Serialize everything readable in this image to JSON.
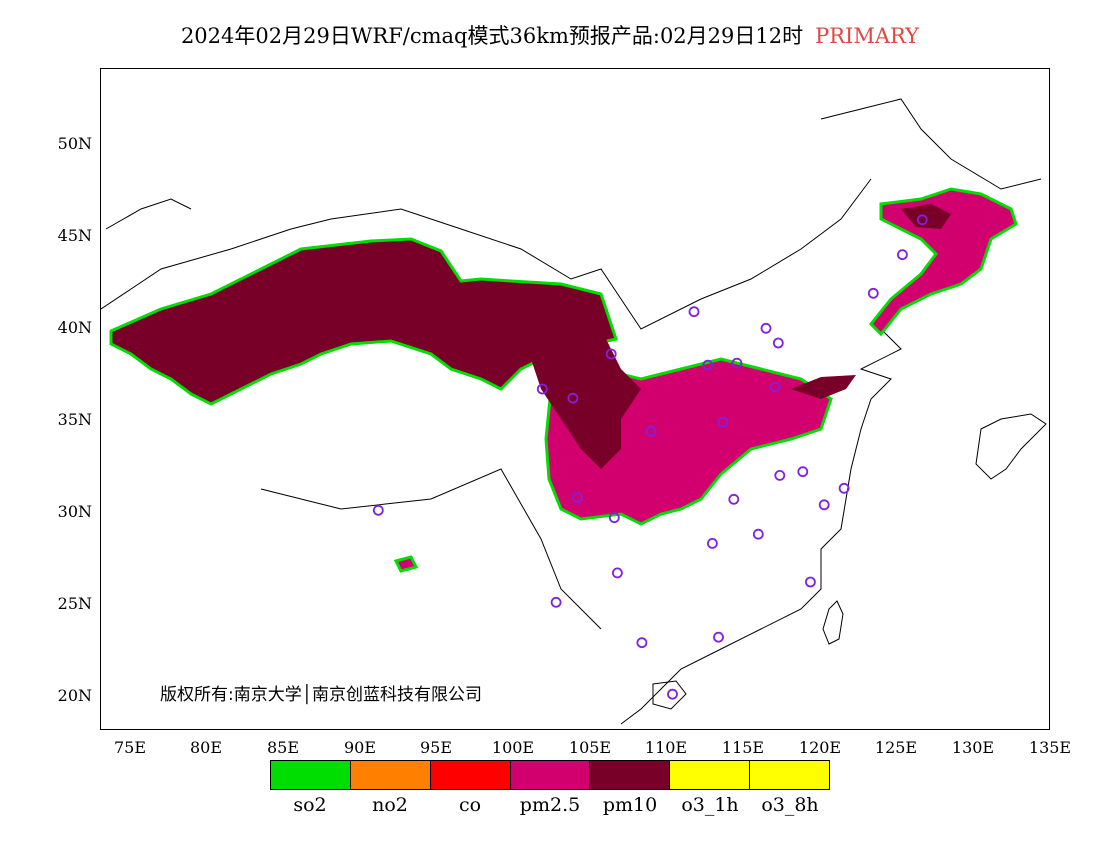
{
  "title": {
    "main": "2024年02月29日WRF/cmaq模式36km预报产品:02月29日12时",
    "tag": "PRIMARY"
  },
  "y_axis": {
    "labels": [
      "50N",
      "45N",
      "40N",
      "35N",
      "30N",
      "25N",
      "20N"
    ]
  },
  "x_axis": {
    "labels": [
      "75E",
      "80E",
      "85E",
      "90E",
      "95E",
      "100E",
      "105E",
      "110E",
      "115E",
      "120E",
      "125E",
      "130E",
      "135E"
    ]
  },
  "copyright": "版权所有:南京大学│南京创蓝科技有限公司",
  "legend": {
    "items": [
      {
        "label": "so2",
        "color": "#00dd00"
      },
      {
        "label": "no2",
        "color": "#ff8000"
      },
      {
        "label": "co",
        "color": "#ff0000"
      },
      {
        "label": "pm2.5",
        "color": "#d2006e"
      },
      {
        "label": "pm10",
        "color": "#780028"
      },
      {
        "label": "o3_1h",
        "color": "#ffff00"
      },
      {
        "label": "o3_8h",
        "color": "#ffff00"
      }
    ]
  },
  "colors": {
    "pm10": "#780028",
    "pm25": "#d2006e",
    "station_marker": "#8020e0",
    "tag": "#e0473f"
  },
  "map": {
    "lon_range": [
      73,
      135
    ],
    "lat_range": [
      18,
      54
    ],
    "stations": [
      [
        91.1,
        30.0
      ],
      [
        101.8,
        36.6
      ],
      [
        103.8,
        36.1
      ],
      [
        106.3,
        38.5
      ],
      [
        111.7,
        40.8
      ],
      [
        112.6,
        37.9
      ],
      [
        113.6,
        34.8
      ],
      [
        114.5,
        38.0
      ],
      [
        116.4,
        39.9
      ],
      [
        117.2,
        39.1
      ],
      [
        117.0,
        36.7
      ],
      [
        108.9,
        34.3
      ],
      [
        104.1,
        30.7
      ],
      [
        106.5,
        29.6
      ],
      [
        106.7,
        26.6
      ],
      [
        102.7,
        25.0
      ],
      [
        108.3,
        22.8
      ],
      [
        110.3,
        20.0
      ],
      [
        113.3,
        23.1
      ],
      [
        112.9,
        28.2
      ],
      [
        114.3,
        30.6
      ],
      [
        115.9,
        28.7
      ],
      [
        117.3,
        31.9
      ],
      [
        118.8,
        32.1
      ],
      [
        120.2,
        30.3
      ],
      [
        121.5,
        31.2
      ],
      [
        119.3,
        26.1
      ],
      [
        123.4,
        41.8
      ],
      [
        125.3,
        43.9
      ],
      [
        126.6,
        45.8
      ]
    ]
  }
}
